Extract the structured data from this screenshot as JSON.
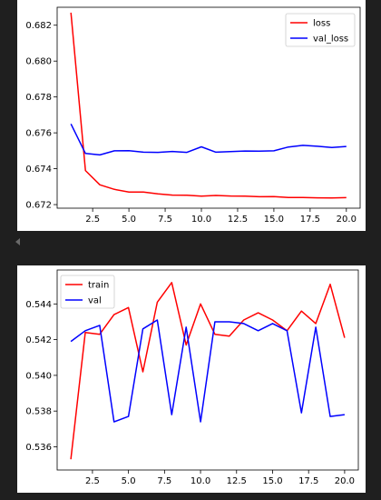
{
  "chart_data": [
    {
      "type": "line",
      "x": [
        1,
        2,
        3,
        4,
        5,
        6,
        7,
        8,
        9,
        10,
        11,
        12,
        13,
        14,
        15,
        16,
        17,
        18,
        19,
        20
      ],
      "xticks": [
        "2.5",
        "5.0",
        "7.5",
        "10.0",
        "12.5",
        "15.0",
        "17.5",
        "20.0"
      ],
      "yticks": [
        "0.672",
        "0.674",
        "0.676",
        "0.678",
        "0.680",
        "0.682"
      ],
      "xlim": [
        0.05,
        20.95
      ],
      "ylim": [
        0.6718,
        0.683
      ],
      "legend": "top-right",
      "series": [
        {
          "name": "loss",
          "color": "#ff0000",
          "values": [
            0.6827,
            0.6739,
            0.6731,
            0.67285,
            0.6727,
            0.6727,
            0.6726,
            0.67253,
            0.67252,
            0.67247,
            0.67251,
            0.67248,
            0.67247,
            0.67244,
            0.67245,
            0.6724,
            0.6724,
            0.67238,
            0.67237,
            0.67239
          ]
        },
        {
          "name": "val_loss",
          "color": "#0000ff",
          "values": [
            0.6765,
            0.67485,
            0.67477,
            0.675,
            0.67501,
            0.67492,
            0.67491,
            0.67496,
            0.67491,
            0.67522,
            0.67492,
            0.67495,
            0.67499,
            0.67498,
            0.675,
            0.67521,
            0.6753,
            0.67525,
            0.67518,
            0.67524
          ]
        }
      ]
    },
    {
      "type": "line",
      "x": [
        1,
        2,
        3,
        4,
        5,
        6,
        7,
        8,
        9,
        10,
        11,
        12,
        13,
        14,
        15,
        16,
        17,
        18,
        19,
        20
      ],
      "xticks": [
        "2.5",
        "5.0",
        "7.5",
        "10.0",
        "12.5",
        "15.0",
        "17.5",
        "20.0"
      ],
      "yticks": [
        "0.536",
        "0.538",
        "0.540",
        "0.542",
        "0.544"
      ],
      "xlim": [
        0.05,
        20.95
      ],
      "ylim": [
        0.5347,
        0.5459
      ],
      "legend": "top-left",
      "series": [
        {
          "name": "train",
          "color": "#ff0000",
          "values": [
            0.5353,
            0.5424,
            0.5423,
            0.5434,
            0.5438,
            0.5402,
            0.5441,
            0.5452,
            0.5417,
            0.544,
            0.5423,
            0.5422,
            0.5431,
            0.5435,
            0.5431,
            0.5425,
            0.5436,
            0.5429,
            0.5451,
            0.5421
          ]
        },
        {
          "name": "val",
          "color": "#0000ff",
          "values": [
            0.5419,
            0.5425,
            0.5428,
            0.5374,
            0.5377,
            0.5426,
            0.5431,
            0.5378,
            0.5427,
            0.5374,
            0.543,
            0.543,
            0.5429,
            0.5425,
            0.5429,
            0.5425,
            0.5379,
            0.5427,
            0.5377,
            0.5378
          ]
        }
      ]
    }
  ]
}
